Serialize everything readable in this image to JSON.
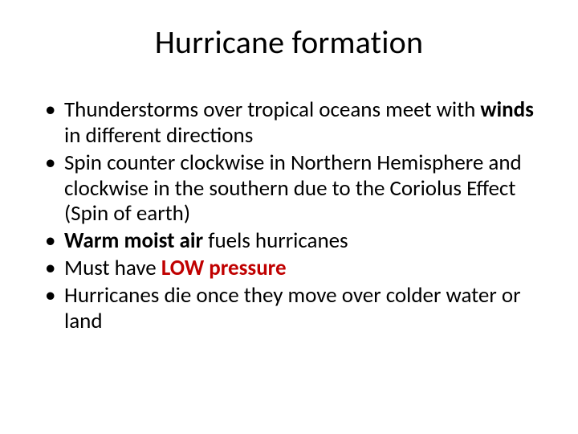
{
  "slide": {
    "title": "Hurricane formation",
    "title_color": "#000000",
    "title_fontsize": 40,
    "body_fontsize": 27,
    "background_color": "#ffffff",
    "bullets": [
      {
        "segments": [
          {
            "text": "Thunderstorms over tropical oceans meet with ",
            "style": "normal"
          },
          {
            "text": "winds",
            "style": "bold"
          },
          {
            "text": " in different directions",
            "style": "normal"
          }
        ]
      },
      {
        "segments": [
          {
            "text": "Spin counter clockwise in Northern Hemisphere and clockwise in the southern due to the Coriolus Effect (Spin of earth)",
            "style": "normal"
          }
        ]
      },
      {
        "segments": [
          {
            "text": "Warm moist air ",
            "style": "bold"
          },
          {
            "text": "fuels hurricanes",
            "style": "normal"
          }
        ]
      },
      {
        "segments": [
          {
            "text": "Must have ",
            "style": "normal"
          },
          {
            "text": "LOW pressure",
            "style": "red-bold"
          }
        ]
      },
      {
        "segments": [
          {
            "text": "Hurricanes die once they move over colder water or land",
            "style": "normal"
          }
        ]
      }
    ],
    "colors": {
      "text": "#000000",
      "emphasis_red": "#c00000",
      "background": "#ffffff"
    }
  }
}
